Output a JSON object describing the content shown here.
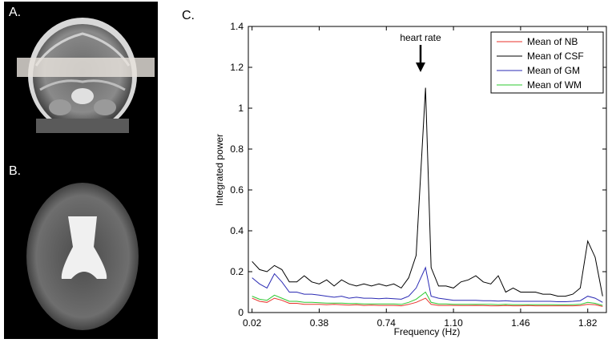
{
  "panels": {
    "a_label": "A.",
    "b_label": "B.",
    "c_label": "C."
  },
  "chart_data": {
    "type": "line",
    "title": "",
    "xlabel": "Frequency (Hz)",
    "ylabel": "Integrated power",
    "xlim": [
      0.0,
      1.92
    ],
    "ylim": [
      0,
      1.4
    ],
    "xticks": [
      0.02,
      0.38,
      0.74,
      1.1,
      1.46,
      1.82
    ],
    "xtick_labels": [
      "0.02",
      "0.38",
      "0.74",
      "1.10",
      "1.46",
      "1.82"
    ],
    "yticks": [
      0,
      0.2,
      0.4,
      0.6,
      0.8,
      1,
      1.2,
      1.4
    ],
    "ytick_labels": [
      "0",
      "0.2",
      "0.4",
      "0.6",
      "0.8",
      "1",
      "1.2",
      "1.4"
    ],
    "annotation": {
      "text": "heart rate",
      "x": 0.95
    },
    "legend_position": "top-right",
    "x": [
      0.02,
      0.06,
      0.1,
      0.14,
      0.18,
      0.22,
      0.26,
      0.3,
      0.34,
      0.38,
      0.42,
      0.46,
      0.5,
      0.54,
      0.58,
      0.62,
      0.66,
      0.7,
      0.74,
      0.78,
      0.82,
      0.86,
      0.9,
      0.95,
      0.98,
      1.02,
      1.06,
      1.1,
      1.14,
      1.18,
      1.22,
      1.26,
      1.3,
      1.34,
      1.38,
      1.42,
      1.46,
      1.5,
      1.54,
      1.58,
      1.62,
      1.66,
      1.7,
      1.74,
      1.78,
      1.82,
      1.86,
      1.9
    ],
    "series": [
      {
        "name": "Mean of NB",
        "color": "#e8322a",
        "values": [
          0.07,
          0.055,
          0.05,
          0.07,
          0.06,
          0.045,
          0.045,
          0.04,
          0.04,
          0.04,
          0.038,
          0.04,
          0.038,
          0.036,
          0.038,
          0.035,
          0.036,
          0.035,
          0.035,
          0.035,
          0.033,
          0.04,
          0.05,
          0.07,
          0.04,
          0.035,
          0.035,
          0.035,
          0.034,
          0.034,
          0.035,
          0.034,
          0.033,
          0.033,
          0.034,
          0.033,
          0.033,
          0.034,
          0.033,
          0.033,
          0.033,
          0.033,
          0.033,
          0.033,
          0.034,
          0.04,
          0.038,
          0.03
        ]
      },
      {
        "name": "Mean of CSF",
        "color": "#000000",
        "values": [
          0.25,
          0.21,
          0.2,
          0.23,
          0.21,
          0.15,
          0.15,
          0.18,
          0.15,
          0.14,
          0.16,
          0.13,
          0.16,
          0.14,
          0.13,
          0.14,
          0.13,
          0.14,
          0.13,
          0.14,
          0.12,
          0.17,
          0.28,
          1.1,
          0.22,
          0.13,
          0.13,
          0.12,
          0.15,
          0.16,
          0.18,
          0.15,
          0.14,
          0.18,
          0.1,
          0.12,
          0.1,
          0.1,
          0.1,
          0.09,
          0.09,
          0.08,
          0.08,
          0.09,
          0.12,
          0.35,
          0.27,
          0.08
        ]
      },
      {
        "name": "Mean of GM",
        "color": "#2b2bb4",
        "values": [
          0.17,
          0.14,
          0.12,
          0.19,
          0.15,
          0.1,
          0.1,
          0.09,
          0.09,
          0.085,
          0.08,
          0.075,
          0.08,
          0.07,
          0.075,
          0.07,
          0.07,
          0.068,
          0.07,
          0.068,
          0.065,
          0.08,
          0.12,
          0.22,
          0.08,
          0.07,
          0.065,
          0.06,
          0.06,
          0.06,
          0.06,
          0.058,
          0.058,
          0.056,
          0.058,
          0.055,
          0.055,
          0.055,
          0.055,
          0.055,
          0.055,
          0.053,
          0.053,
          0.055,
          0.058,
          0.08,
          0.07,
          0.05
        ]
      },
      {
        "name": "Mean of WM",
        "color": "#2ec832",
        "values": [
          0.08,
          0.065,
          0.06,
          0.085,
          0.07,
          0.055,
          0.055,
          0.05,
          0.05,
          0.048,
          0.046,
          0.046,
          0.046,
          0.044,
          0.044,
          0.042,
          0.042,
          0.042,
          0.042,
          0.042,
          0.04,
          0.05,
          0.065,
          0.1,
          0.05,
          0.042,
          0.042,
          0.04,
          0.04,
          0.04,
          0.04,
          0.04,
          0.04,
          0.039,
          0.04,
          0.039,
          0.039,
          0.039,
          0.039,
          0.039,
          0.039,
          0.038,
          0.038,
          0.039,
          0.04,
          0.05,
          0.045,
          0.035
        ]
      }
    ]
  }
}
